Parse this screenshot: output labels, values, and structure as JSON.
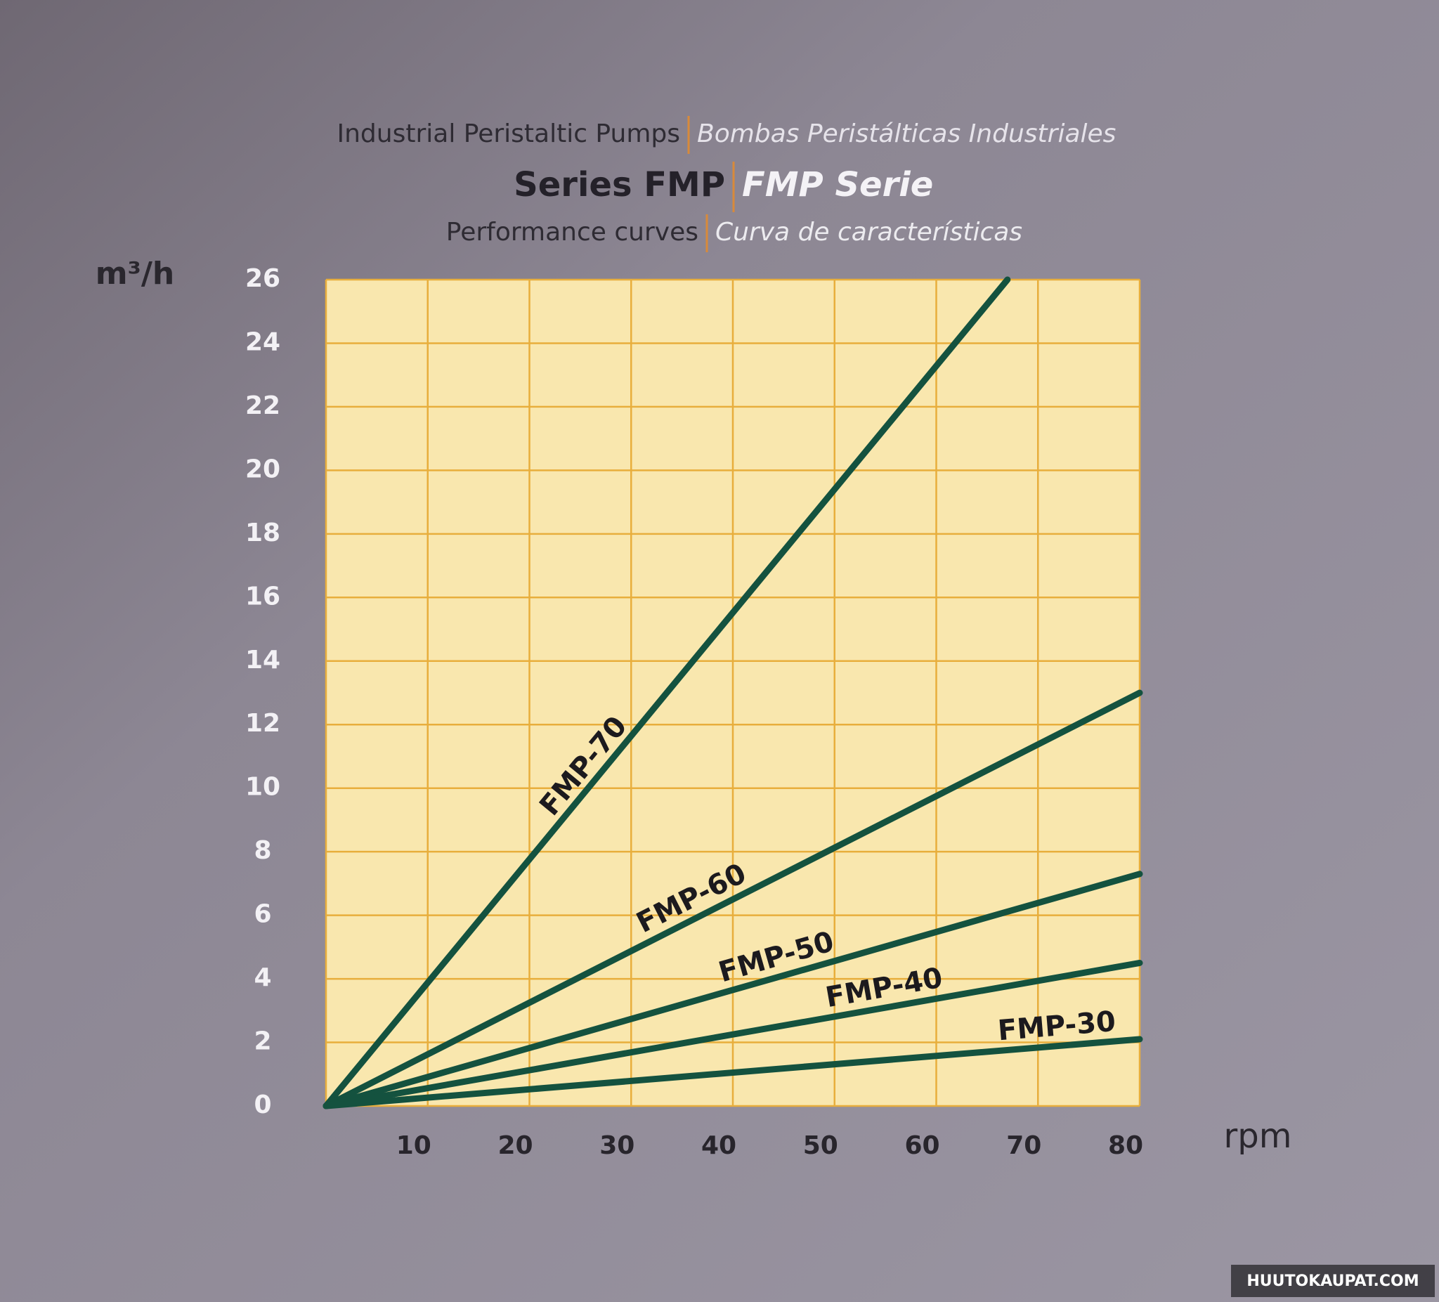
{
  "chart_data": {
    "type": "line",
    "supertitle": [
      "Industrial Peristaltic Pumps",
      "Bombas Peristálticas Industriales"
    ],
    "title": [
      "Series FMP",
      "FMP Serie"
    ],
    "subtitle": [
      "Performance curves",
      "Curva de características"
    ],
    "ylabel": "m³/h",
    "xlabel": "rpm",
    "xlim": [
      0,
      80
    ],
    "xticks": [
      10,
      20,
      30,
      40,
      50,
      60,
      70,
      80
    ],
    "ylim": [
      0,
      26
    ],
    "yticks": [
      0,
      2,
      4,
      6,
      8,
      10,
      12,
      14,
      16,
      18,
      20,
      22,
      24,
      26
    ],
    "grid": true,
    "series": [
      {
        "name": "FMP-70",
        "color": "#14523f",
        "x": [
          0,
          67
        ],
        "values": [
          0,
          26
        ]
      },
      {
        "name": "FMP-60",
        "color": "#14523f",
        "x": [
          0,
          80
        ],
        "values": [
          0,
          13
        ]
      },
      {
        "name": "FMP-50",
        "color": "#14523f",
        "x": [
          0,
          80
        ],
        "values": [
          0,
          7.3
        ]
      },
      {
        "name": "FMP-40",
        "color": "#14523f",
        "x": [
          0,
          80
        ],
        "values": [
          0,
          4.5
        ]
      },
      {
        "name": "FMP-30",
        "color": "#14523f",
        "x": [
          0,
          80
        ],
        "values": [
          0,
          2.1
        ]
      }
    ],
    "watermark": "HUUTOKAUPAT.COM"
  }
}
